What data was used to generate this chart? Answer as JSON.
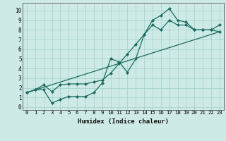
{
  "xlabel": "Humidex (Indice chaleur)",
  "xlim": [
    -0.5,
    23.5
  ],
  "ylim": [
    -0.3,
    10.8
  ],
  "xticks": [
    0,
    1,
    2,
    3,
    4,
    5,
    6,
    7,
    8,
    9,
    10,
    11,
    12,
    13,
    14,
    15,
    16,
    17,
    18,
    19,
    20,
    21,
    22,
    23
  ],
  "yticks": [
    0,
    1,
    2,
    3,
    4,
    5,
    6,
    7,
    8,
    9,
    10
  ],
  "bg_color": "#ceeae6",
  "line_color": "#1a6b5e",
  "grid_color": "#aad4ce",
  "line1_x": [
    0,
    1,
    2,
    3,
    4,
    5,
    6,
    7,
    8,
    9,
    10,
    11,
    12,
    13,
    14,
    15,
    16,
    17,
    18,
    19,
    20,
    21,
    22,
    23
  ],
  "line1_y": [
    1.5,
    1.8,
    1.8,
    0.4,
    0.8,
    1.1,
    1.1,
    1.1,
    1.5,
    2.5,
    5.0,
    4.7,
    3.6,
    5.0,
    7.5,
    9.0,
    9.5,
    10.2,
    9.0,
    8.8,
    8.0,
    8.0,
    8.0,
    8.5
  ],
  "line2_x": [
    0,
    1,
    2,
    3,
    4,
    5,
    6,
    7,
    8,
    9,
    10,
    11,
    12,
    13,
    14,
    15,
    16,
    17,
    18,
    19,
    20,
    21,
    22,
    23
  ],
  "line2_y": [
    1.5,
    1.8,
    2.3,
    1.6,
    2.3,
    2.4,
    2.4,
    2.4,
    2.6,
    2.8,
    3.5,
    4.5,
    5.5,
    6.5,
    7.5,
    8.5,
    8.0,
    9.0,
    8.5,
    8.5,
    8.0,
    8.0,
    8.0,
    7.8
  ],
  "line3_x": [
    0,
    23
  ],
  "line3_y": [
    1.5,
    7.8
  ]
}
